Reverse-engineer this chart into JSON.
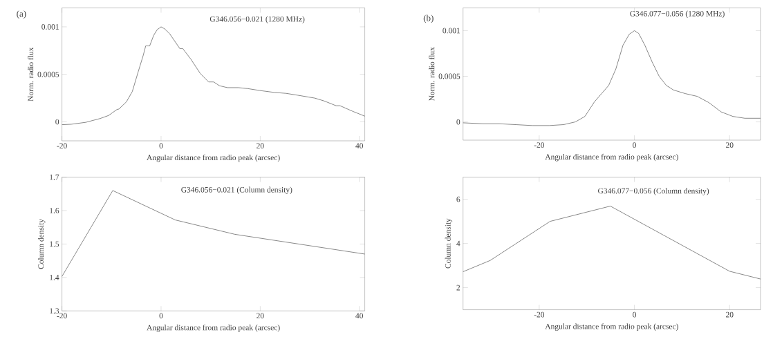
{
  "chart_data": [
    {
      "type": "line",
      "title": "G346.056−0.021 (1280 MHz)",
      "annotations": [
        "(a)"
      ],
      "xlabel": "Angular distance from radio peak (arcsec)",
      "ylabel": "Norm. radio flux",
      "color": "#555555",
      "x": [
        -20,
        -18.1,
        -15.2,
        -12.3,
        -10.6,
        -8.9,
        -8.5,
        -7.0,
        -5.8,
        -4.6,
        -3.6,
        -3.1,
        -2.3,
        -1.5,
        -0.8,
        0,
        0.7,
        1.7,
        3.8,
        4.4,
        6.0,
        7.9,
        9.6,
        10.6,
        11.8,
        13.4,
        15.6,
        17.5,
        19.9,
        22.8,
        25.2,
        27.6,
        31.0,
        32.9,
        35.3,
        36.1,
        38.7,
        41.1
      ],
      "values": [
        -3e-05,
        -2.5e-05,
        -5e-06,
        3.5e-05,
        6.7e-05,
        0.00013,
        0.000135,
        0.00021,
        0.00032,
        0.00053,
        0.0007,
        0.0008,
        0.0008,
        0.00091,
        0.00097,
        0.001,
        0.00098,
        0.00093,
        0.00077,
        0.00077,
        0.00066,
        0.00051,
        0.00042,
        0.00042,
        0.00038,
        0.00036,
        0.00036,
        0.00035,
        0.00033,
        0.00031,
        0.0003,
        0.00028,
        0.00025,
        0.00022,
        0.00017,
        0.00017,
        0.00011,
        6e-05
      ],
      "xlim": [
        -20,
        41.1
      ],
      "ylim": [
        -0.0002,
        0.0012
      ],
      "xticks": [
        -20,
        0,
        20,
        40
      ],
      "yticks": [
        0,
        0.0005,
        0.001
      ]
    },
    {
      "type": "line",
      "title": "G346.077−0.056 (1280 MHz)",
      "annotations": [
        "(b)"
      ],
      "xlabel": "Angular distance from radio peak (arcsec)",
      "ylabel": "Norm. radio flux",
      "color": "#555555",
      "x": [
        -36,
        -31.9,
        -28.4,
        -24.9,
        -21.4,
        -17.9,
        -14.9,
        -12.4,
        -10.4,
        -8.4,
        -6.9,
        -5.4,
        -3.9,
        -2.4,
        -1.1,
        0,
        0.9,
        2.2,
        3.7,
        5.2,
        6.7,
        8.2,
        10.7,
        13.2,
        15.7,
        18.2,
        20.7,
        23.2,
        26.5
      ],
      "values": [
        -1e-05,
        -2e-05,
        -2e-05,
        -3e-05,
        -4e-05,
        -4e-05,
        -3e-05,
        0,
        6e-05,
        0.00022,
        0.00031,
        0.0004,
        0.00058,
        0.00084,
        0.00096,
        0.001,
        0.00097,
        0.00084,
        0.00066,
        0.0005,
        0.0004,
        0.00035,
        0.00031,
        0.00028,
        0.00021,
        0.00011,
        6e-05,
        4e-05,
        4e-05
      ],
      "xlim": [
        -36,
        26.5
      ],
      "ylim": [
        -0.0002,
        0.00125
      ],
      "xticks": [
        -20,
        0,
        20
      ],
      "yticks": [
        0,
        0.0005,
        0.001
      ]
    },
    {
      "type": "line",
      "title": "G346.056−0.021 (Column density)",
      "xlabel": "Angular distance from radio peak (arcsec)",
      "ylabel": "Column density",
      "color": "#555555",
      "x": [
        -20,
        -9.75,
        2.86,
        14.9,
        41.1
      ],
      "values": [
        1.403,
        1.66,
        1.572,
        1.529,
        1.47
      ],
      "xlim": [
        -20,
        41.1
      ],
      "ylim": [
        1.3,
        1.7
      ],
      "xticks": [
        -20,
        0,
        20,
        40
      ],
      "yticks": [
        1.3,
        1.4,
        1.5,
        1.6,
        1.7
      ]
    },
    {
      "type": "line",
      "title": "G346.077−0.056 (Column density)",
      "xlabel": "Angular distance from radio peak (arcsec)",
      "ylabel": "Column density",
      "color": "#555555",
      "x": [
        -36,
        -30.3,
        -17.7,
        -5.05,
        20,
        26.5
      ],
      "values": [
        2.72,
        3.23,
        5.0,
        5.69,
        2.74,
        2.39
      ],
      "xlim": [
        -36,
        26.5
      ],
      "ylim": [
        1,
        7
      ],
      "xticks": [
        -20,
        0,
        20
      ],
      "yticks": [
        2,
        4,
        6
      ]
    }
  ]
}
